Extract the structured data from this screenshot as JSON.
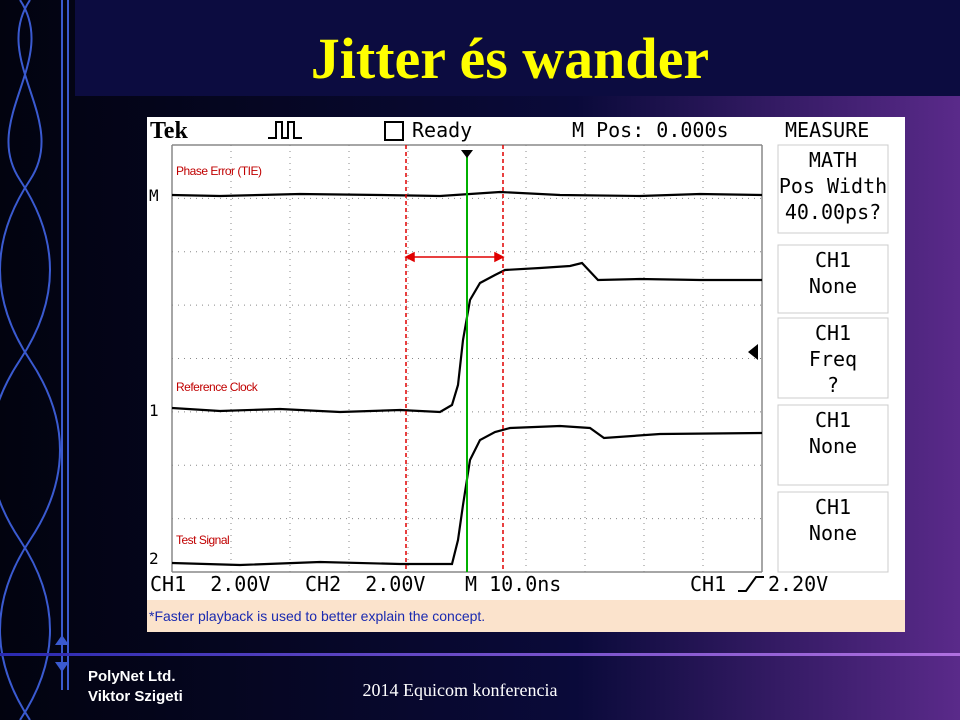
{
  "slide": {
    "title": "Jitter és wander",
    "footer_left": [
      "PolyNet Ltd.",
      "Viktor Szigeti"
    ],
    "footer_center": "2014 Equicom konferencia"
  },
  "scope": {
    "brand": "Tek",
    "status": "Ready",
    "position": "M Pos: 0.000s",
    "labels": [
      "Phase Error (TIE)",
      "Reference Clock",
      "Test Signal"
    ],
    "markers": [
      "M",
      "1",
      "2"
    ],
    "bottom": [
      "CH1  2.00V",
      "CH2  2.00V",
      "M 10.0ns",
      "CH1",
      "2.20V"
    ],
    "menu_title": "MEASURE",
    "menu": [
      [
        "MATH",
        "Pos Width",
        "40.00ps?"
      ],
      [
        "CH1",
        "None"
      ],
      [
        "CH1",
        "Freq",
        "?"
      ],
      [
        "CH1",
        "None"
      ],
      [
        "CH1",
        "None"
      ]
    ],
    "note": "*Faster playback is used to better explain the concept."
  }
}
